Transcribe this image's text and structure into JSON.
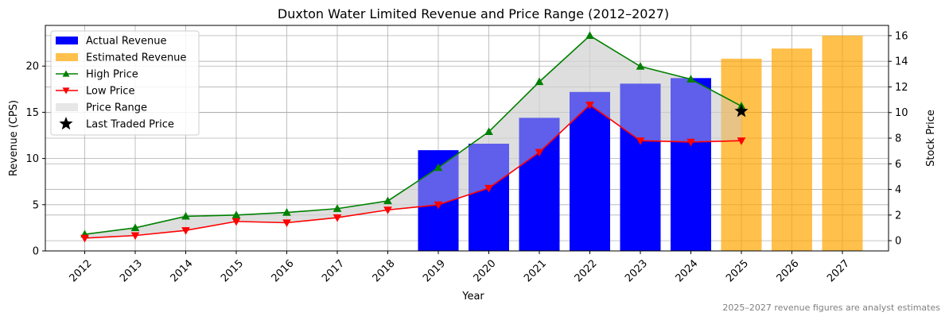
{
  "chart_data": {
    "type": "bar",
    "title": "Duxton Water Limited Revenue and Price Range (2012–2027)",
    "xlabel": "Year",
    "ylabel_left": "Revenue (CPS)",
    "ylabel_right": "Stock Price",
    "footnote": "2025–2027 revenue figures are analyst estimates",
    "grid": true,
    "legend_position": "top-left",
    "categories": [
      "2012",
      "2013",
      "2014",
      "2015",
      "2016",
      "2017",
      "2018",
      "2019",
      "2020",
      "2021",
      "2022",
      "2023",
      "2024",
      "2025",
      "2026",
      "2027"
    ],
    "ylim_left": [
      0,
      24.4
    ],
    "yticks_left": [
      0,
      5,
      10,
      15,
      20
    ],
    "ylim_right": [
      -0.8,
      16.8
    ],
    "yticks_right": [
      0,
      2,
      4,
      6,
      8,
      10,
      12,
      14,
      16
    ],
    "series": [
      {
        "name": "Actual Revenue",
        "kind": "bar",
        "axis": "left",
        "color": "#0000ff",
        "values": [
          null,
          null,
          null,
          null,
          null,
          null,
          null,
          10.9,
          11.6,
          14.4,
          17.2,
          18.1,
          18.7,
          null,
          null,
          null
        ]
      },
      {
        "name": "Estimated Revenue",
        "kind": "bar",
        "axis": "left",
        "color": "#ffa500",
        "values": [
          null,
          null,
          null,
          null,
          null,
          null,
          null,
          null,
          null,
          null,
          null,
          null,
          null,
          20.8,
          21.9,
          23.3
        ]
      },
      {
        "name": "High Price",
        "kind": "line",
        "axis": "right",
        "color": "#008000",
        "marker": "triangle-up",
        "values": [
          0.5,
          1.0,
          1.9,
          2.0,
          2.2,
          2.5,
          3.1,
          5.7,
          8.5,
          12.4,
          16.0,
          13.6,
          12.6,
          10.5,
          null,
          null
        ]
      },
      {
        "name": "Low Price",
        "kind": "line",
        "axis": "right",
        "color": "#ff0000",
        "marker": "triangle-down",
        "values": [
          0.2,
          0.4,
          0.8,
          1.5,
          1.4,
          1.8,
          2.4,
          2.8,
          4.1,
          6.9,
          10.6,
          7.8,
          7.7,
          7.8,
          null,
          null
        ]
      },
      {
        "name": "Price Range",
        "kind": "area",
        "axis": "right",
        "color": "#d3d3d3"
      },
      {
        "name": "Last Traded Price",
        "kind": "marker",
        "axis": "right",
        "color": "#000000",
        "marker": "star",
        "x": "2025",
        "value": 10.1
      }
    ]
  }
}
